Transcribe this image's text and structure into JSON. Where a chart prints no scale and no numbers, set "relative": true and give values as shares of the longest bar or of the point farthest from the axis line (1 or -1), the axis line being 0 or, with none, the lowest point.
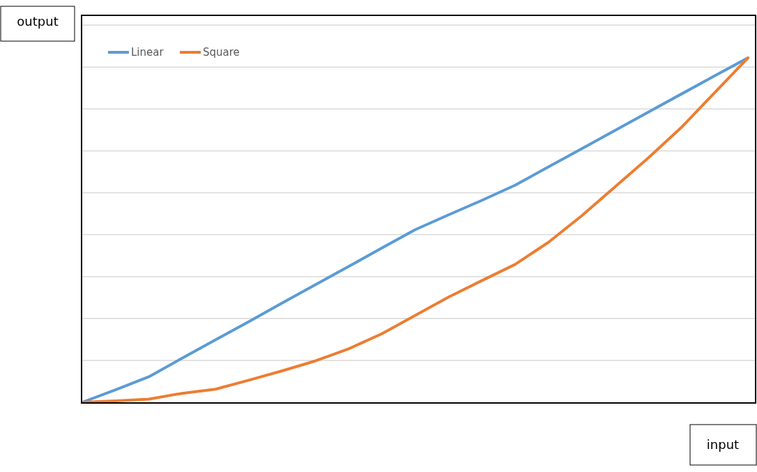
{
  "chart_data": {
    "type": "line",
    "relative": true,
    "xlabel": "input",
    "ylabel": "output",
    "grid": "y",
    "legend": "top left",
    "categories": [
      null,
      null,
      null,
      null,
      null,
      null,
      null,
      null,
      null,
      null,
      null,
      null,
      null,
      null,
      null,
      null,
      null,
      null,
      null,
      null,
      null
    ],
    "series": [
      {
        "name": "Linear",
        "color": "#5b9bd5",
        "values": [
          0,
          0.036,
          0.074,
          0.128,
          0.181,
          0.234,
          0.288,
          0.341,
          0.394,
          0.448,
          0.501,
          0.544,
          0.586,
          0.63,
          0.683,
          0.736,
          0.789,
          0.842,
          0.895,
          0.948,
          1
        ]
      },
      {
        "name": "Square",
        "color": "#ed7d31",
        "values": [
          0,
          0.004,
          0.009,
          0.026,
          0.038,
          0.064,
          0.091,
          0.12,
          0.155,
          0.199,
          0.252,
          0.305,
          0.353,
          0.4,
          0.464,
          0.541,
          0.625,
          0.709,
          0.798,
          0.899,
          1
        ]
      }
    ]
  }
}
